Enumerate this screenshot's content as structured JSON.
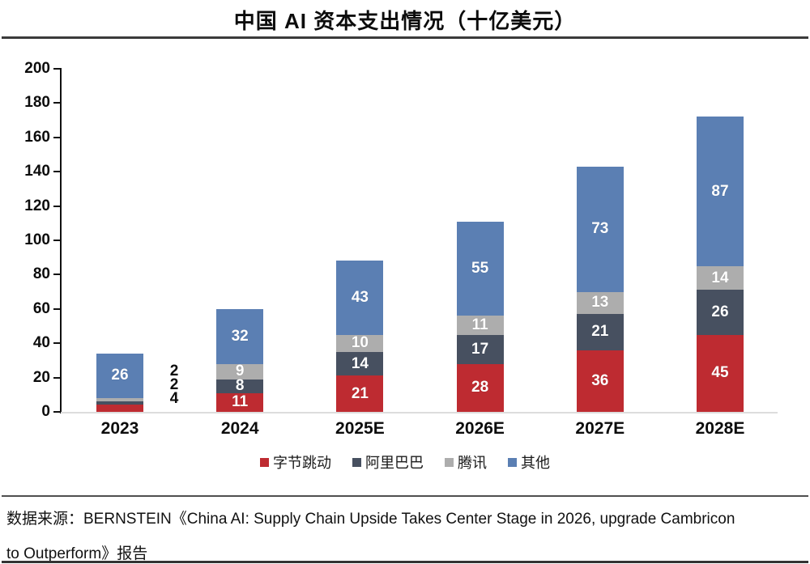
{
  "title": "中国 AI 资本支出情况（十亿美元）",
  "source": {
    "line1": "数据来源：BERNSTEIN《China AI: Supply Chain Upside Takes Center Stage in 2026, upgrade Cambricon",
    "line2": "to Outperform》报告"
  },
  "colors": {
    "bytedance_red": "#BE2B31",
    "alibaba_dark": "#475060",
    "tencent_gray": "#ADADAD",
    "others_blue": "#5B7FB3",
    "axis_black": "#111111",
    "baseline_gray": "#DDDDDD",
    "rule_dark": "#3B3B3B"
  },
  "chart_data": {
    "type": "bar",
    "stacked": true,
    "title": "中国 AI 资本支出情况（十亿美元）",
    "categories": [
      "2023",
      "2024",
      "2025E",
      "2026E",
      "2027E",
      "2028E"
    ],
    "series": [
      {
        "name": "字节跳动",
        "color": "#BE2B31",
        "values": [
          4,
          11,
          21,
          28,
          36,
          45
        ]
      },
      {
        "name": "阿里巴巴",
        "color": "#475060",
        "values": [
          2,
          8,
          14,
          17,
          21,
          26
        ]
      },
      {
        "name": "腾讯",
        "color": "#ADADAD",
        "values": [
          2,
          9,
          10,
          11,
          13,
          14
        ]
      },
      {
        "name": "其他",
        "color": "#5B7FB3",
        "values": [
          26,
          32,
          43,
          55,
          73,
          87
        ]
      }
    ],
    "totals": [
      34,
      60,
      88,
      111,
      143,
      172
    ],
    "ylim": [
      0,
      200
    ],
    "yticks": [
      0,
      20,
      40,
      60,
      80,
      100,
      120,
      140,
      160,
      180,
      200
    ],
    "grid": false,
    "legend_position": "bottom",
    "callout_2023": {
      "note": "small 2023 segments labeled outside bar, top-to-bottom: 腾讯, 阿里巴巴, 字节跳动",
      "labels": [
        "2",
        "2",
        "4"
      ]
    }
  }
}
